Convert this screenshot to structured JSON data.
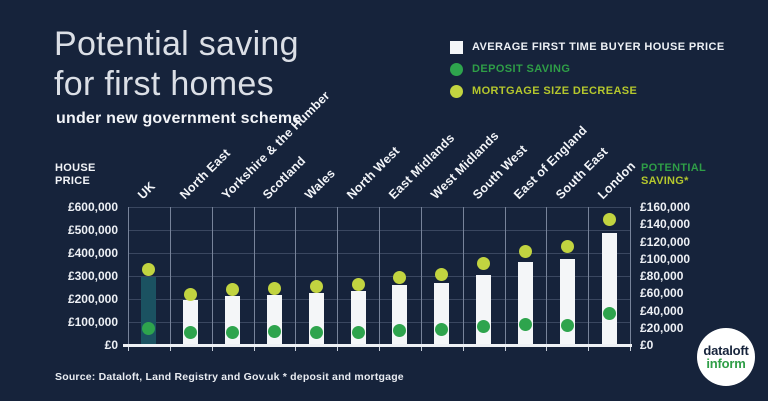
{
  "page": {
    "title_line1": "Potential saving",
    "title_line2": "for first homes",
    "subtitle": "under new government scheme",
    "source": "Source: Dataloft, Land Registry and Gov.uk * deposit and mortgage"
  },
  "legend": {
    "items": [
      {
        "label": "AVERAGE FIRST TIME BUYER HOUSE PRICE",
        "marker": "square",
        "color": "#f4f6f8",
        "text_color": "#edf0f5"
      },
      {
        "label": "DEPOSIT SAVING",
        "marker": "circle",
        "color": "#2ea44d",
        "text_color": "#2f9e47"
      },
      {
        "label": "MORTGAGE SIZE DECREASE",
        "marker": "circle",
        "color": "#c2d440",
        "text_color": "#b5c72d"
      }
    ]
  },
  "axes": {
    "left": {
      "title_line1": "HOUSE",
      "title_line2": "PRICE",
      "ticks": [
        "£600,000",
        "£500,000",
        "£400,000",
        "£300,000",
        "£200,000",
        "£100,000",
        "£0"
      ]
    },
    "right": {
      "title_line1": "POTENTIAL",
      "title_line2": "SAVING*",
      "ticks": [
        "£160,000",
        "£140,000",
        "£120,000",
        "£100,000",
        "£80,000",
        "£60,000",
        "£40,000",
        "£20,000",
        "£0"
      ]
    }
  },
  "chart_data": {
    "type": "bar",
    "title": "Potential saving for first homes under new government scheme",
    "categories": [
      "UK",
      "North East",
      "Yorkshire & the Humber",
      "Scotland",
      "Wales",
      "North West",
      "East Midlands",
      "West Midlands",
      "South West",
      "East of England",
      "South East",
      "London"
    ],
    "series": [
      {
        "name": "Average first time buyer house price",
        "type": "bar",
        "axis": "left",
        "color": "#f4f6f8",
        "values": [
          295000,
          195000,
          211000,
          216000,
          226000,
          235000,
          263000,
          271000,
          305000,
          362000,
          376000,
          485000
        ]
      },
      {
        "name": "Deposit saving",
        "type": "point",
        "axis": "right",
        "color": "#2ea44d",
        "values": [
          19000,
          14000,
          14000,
          16000,
          15000,
          15000,
          17000,
          18000,
          21000,
          24000,
          23000,
          37000
        ]
      },
      {
        "name": "Mortgage size decrease",
        "type": "point",
        "axis": "right",
        "color": "#c2d440",
        "values": [
          87000,
          58000,
          64000,
          66000,
          68000,
          70000,
          78000,
          82000,
          94000,
          108000,
          114000,
          146000
        ]
      }
    ],
    "highlight_category": "UK",
    "highlight_bar_color": "#1b5261",
    "left_axis": {
      "label": "HOUSE PRICE",
      "min": 0,
      "max": 600000,
      "tick_step": 100000
    },
    "right_axis": {
      "label": "POTENTIAL SAVING*",
      "min": 0,
      "max": 160000,
      "tick_step": 20000
    },
    "grid": true,
    "legend_position": "top-right"
  },
  "logo": {
    "line1": "dataloft",
    "line2": "inform"
  },
  "colors": {
    "background": "#16233b",
    "bar_white": "#f4f6f8",
    "uk_bar_teal": "#1b5261",
    "deposit_green": "#2ea44d",
    "mortgage_yellow_green": "#c2d440",
    "grid_horizontal": "#3a4760",
    "grid_vertical": "#77839a",
    "axis_line": "#eef1f5"
  }
}
